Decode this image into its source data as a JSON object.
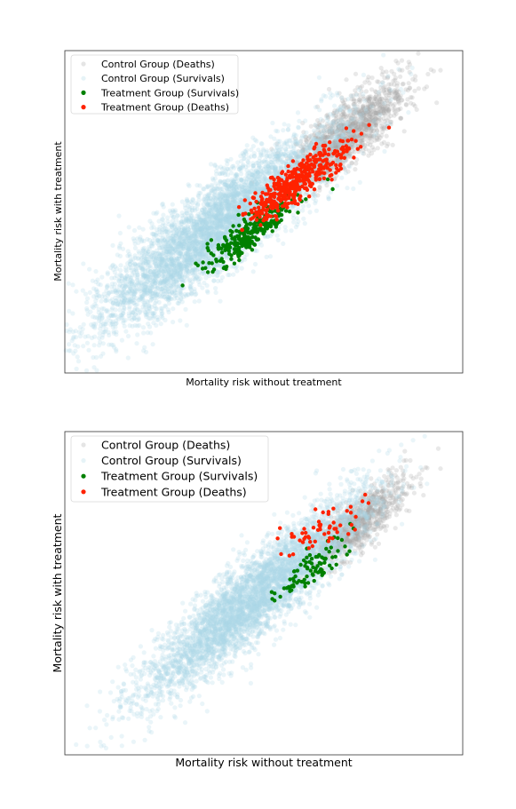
{
  "chart_data": [
    {
      "type": "scatter",
      "title": "",
      "xlabel": "Mortality risk without treatment",
      "ylabel": "Mortality risk with treatment",
      "xticks": [],
      "yticks": [],
      "xlim": [
        0,
        1
      ],
      "ylim": [
        0,
        1
      ],
      "grid": false,
      "legend_position": "top-left",
      "series": [
        {
          "name": "Control Group (Deaths)",
          "color": "#a9a9a9",
          "cloud": {
            "count": 1400,
            "center": [
              0.7,
              0.73
            ],
            "spread": [
              0.08,
              0.11
            ],
            "slope": 0.9
          }
        },
        {
          "name": "Control Group (Survivals)",
          "color": "#add8e6",
          "cloud": {
            "count": 4500,
            "center": [
              0.38,
              0.45
            ],
            "spread": [
              0.15,
              0.16
            ],
            "slope": 0.9
          }
        },
        {
          "name": "Treatment Group (Survivals)",
          "color": "#008000",
          "cloud": {
            "count": 260,
            "center": [
              0.46,
              0.43
            ],
            "spread": [
              0.06,
              0.06
            ],
            "slope": 0.8
          }
        },
        {
          "name": "Treatment Group (Deaths)",
          "color": "#ff2200",
          "cloud": {
            "count": 420,
            "center": [
              0.58,
              0.59
            ],
            "spread": [
              0.06,
              0.07
            ],
            "slope": 0.8
          }
        }
      ]
    },
    {
      "type": "scatter",
      "title": "",
      "xlabel": "Mortality risk without treatment",
      "ylabel": "Mortality risk with treatment",
      "xticks": [],
      "yticks": [],
      "xlim": [
        0,
        1
      ],
      "ylim": [
        0,
        1
      ],
      "grid": false,
      "legend_position": "top-left",
      "series": [
        {
          "name": "Control Group (Deaths)",
          "color": "#a9a9a9",
          "cloud": {
            "count": 900,
            "center": [
              0.74,
              0.72
            ],
            "spread": [
              0.06,
              0.09
            ],
            "slope": 0.9
          }
        },
        {
          "name": "Control Group (Survivals)",
          "color": "#add8e6",
          "cloud": {
            "count": 4200,
            "center": [
              0.48,
              0.49
            ],
            "spread": [
              0.14,
              0.15
            ],
            "slope": 1.0
          }
        },
        {
          "name": "Treatment Group (Survivals)",
          "color": "#008000",
          "cloud": {
            "count": 85,
            "center": [
              0.62,
              0.58
            ],
            "spread": [
              0.05,
              0.06
            ],
            "slope": 0.8
          }
        },
        {
          "name": "Treatment Group (Deaths)",
          "color": "#ff2200",
          "cloud": {
            "count": 55,
            "center": [
              0.64,
              0.7
            ],
            "spread": [
              0.05,
              0.07
            ],
            "slope": 0.6
          }
        }
      ]
    }
  ]
}
